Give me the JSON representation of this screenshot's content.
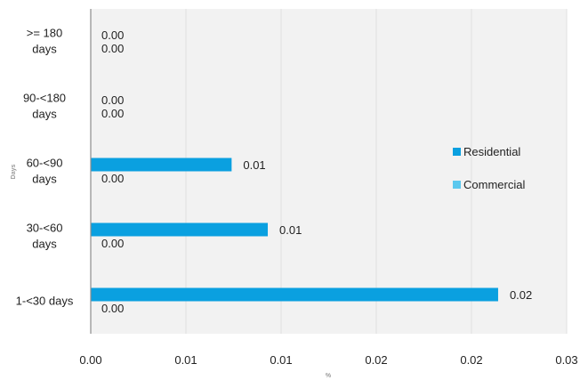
{
  "chart_data": {
    "type": "bar",
    "orientation": "horizontal",
    "categories": [
      [
        ">= 180",
        "days"
      ],
      [
        "90-<180",
        "days"
      ],
      [
        "60-<90",
        "days"
      ],
      [
        "30-<60",
        "days"
      ],
      [
        "1-<30 days"
      ]
    ],
    "series": [
      {
        "name": "Residential",
        "color": "#0aa0e0",
        "values": [
          0,
          0,
          0.0074,
          0.0093,
          0.0214
        ],
        "labels": [
          "0.00",
          "0.00",
          "0.01",
          "0.01",
          "0.02"
        ]
      },
      {
        "name": "Commercial",
        "color": "#5bc8ee",
        "values": [
          0,
          0,
          0,
          0,
          0
        ],
        "labels": [
          "0.00",
          "0.00",
          "0.00",
          "0.00",
          "0.00"
        ]
      }
    ],
    "xlim": [
      0,
      0.025
    ],
    "xticks": [
      0,
      0.005,
      0.01,
      0.015,
      0.02,
      0.025
    ],
    "xtick_labels": [
      "0.00",
      "0.01",
      "0.01",
      "0.02",
      "0.02",
      "0.03"
    ],
    "xlabel": "%",
    "ylabel": "Days",
    "grid": true,
    "legend_position": "right",
    "plot_background": "#f2f2f2",
    "gridline_color": "#e0e0e0"
  }
}
